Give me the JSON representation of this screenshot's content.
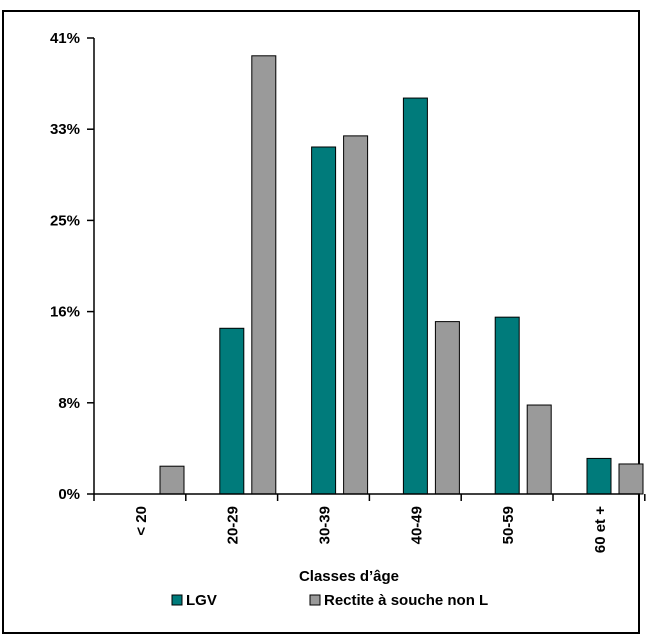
{
  "chart_data": {
    "type": "bar",
    "title": "",
    "xlabel": "Classes d’âge",
    "ylabel": "",
    "categories": [
      "< 20",
      "20-29",
      "30-39",
      "40-49",
      "50-59",
      "60 et +"
    ],
    "series": [
      {
        "name": "LGV",
        "color": "#007b7b",
        "values": [
          0,
          14.9,
          31.2,
          35.6,
          15.9,
          3.2
        ]
      },
      {
        "name": "Rectite à souche non L",
        "color": "#9a9a9a",
        "values": [
          2.5,
          39.4,
          32.2,
          15.5,
          8.0,
          2.7
        ]
      }
    ],
    "yticks": [
      "0%",
      "8%",
      "16%",
      "25%",
      "33%",
      "41%"
    ],
    "ylim": [
      0,
      41
    ],
    "grid": false,
    "legend_position": "bottom"
  }
}
